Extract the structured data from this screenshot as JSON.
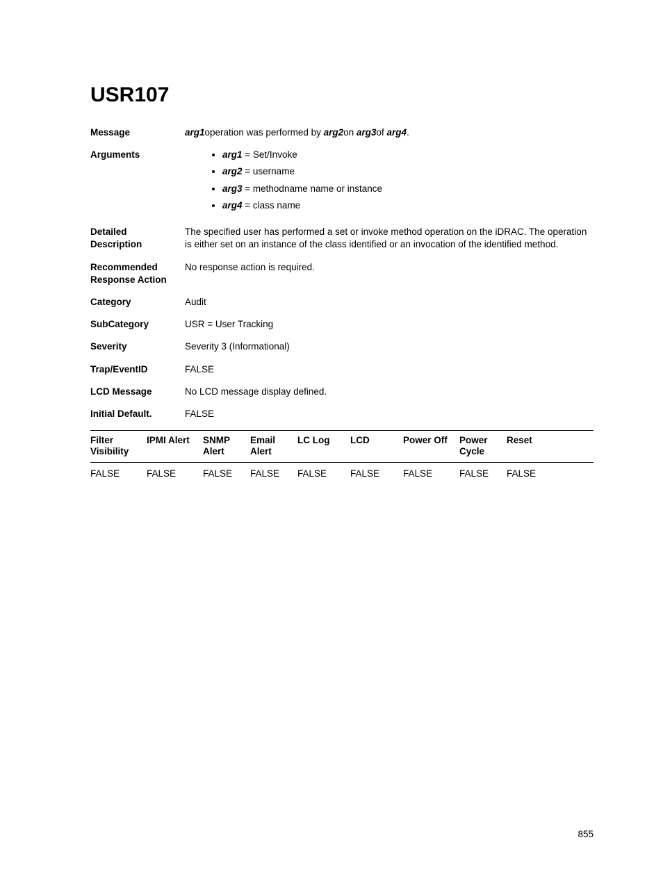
{
  "title": "USR107",
  "message": {
    "label": "Message",
    "pre": "arg1",
    "mid1": "operation was performed by",
    "a2": "arg2",
    "mid2": "on",
    "a3": "arg3",
    "mid3": "of",
    "a4": "arg4",
    "end": "."
  },
  "arguments": {
    "label": "Arguments",
    "items": [
      {
        "name": "arg1",
        "desc": " = Set/Invoke"
      },
      {
        "name": "arg2",
        "desc": " = username"
      },
      {
        "name": "arg3",
        "desc": " = methodname name or instance"
      },
      {
        "name": "arg4",
        "desc": " = class name"
      }
    ]
  },
  "fields": {
    "detailed_label": "Detailed Description",
    "detailed_value": "The specified user has performed a set or invoke method operation on the iDRAC. The operation is either set on an instance of the class identified or an invocation of the identified method.",
    "recommended_label": "Recommended Response Action",
    "recommended_value": "No response action is required.",
    "category_label": "Category",
    "category_value": "Audit",
    "subcategory_label": "SubCategory",
    "subcategory_value": "USR = User Tracking",
    "severity_label": "Severity",
    "severity_value": "Severity 3 (Informational)",
    "trap_label": "Trap/EventID",
    "trap_value": "FALSE",
    "lcd_label": "LCD Message",
    "lcd_value": "No LCD message display defined.",
    "initial_label": "Initial Default.",
    "initial_value": "FALSE"
  },
  "table": {
    "headers": [
      "Filter Visibility",
      "IPMI Alert",
      "SNMP Alert",
      "Email Alert",
      "LC Log",
      "LCD",
      "Power Off",
      "Power Cycle",
      "Reset"
    ],
    "row": [
      "FALSE",
      "FALSE",
      "FALSE",
      "FALSE",
      "FALSE",
      "FALSE",
      "FALSE",
      "FALSE",
      "FALSE"
    ]
  },
  "page_number": "855"
}
